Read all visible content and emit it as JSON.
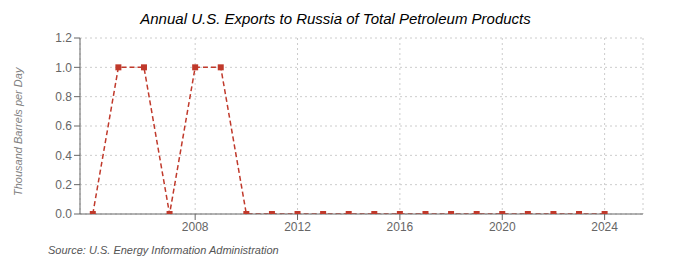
{
  "chart_data": {
    "type": "line",
    "title": "Annual U.S. Exports to Russia of Total Petroleum Products",
    "y_label": "Thousand Barrels per Day",
    "source": "Source: U.S. Energy Information Administration",
    "x": [
      2004,
      2005,
      2006,
      2007,
      2008,
      2009,
      2010,
      2011,
      2012,
      2013,
      2014,
      2015,
      2016,
      2017,
      2018,
      2019,
      2020,
      2021,
      2022,
      2023,
      2024
    ],
    "values": [
      0.0,
      1.0,
      1.0,
      0.0,
      1.0,
      1.0,
      0.0,
      0.0,
      0.0,
      0.0,
      0.0,
      0.0,
      0.0,
      0.0,
      0.0,
      0.0,
      0.0,
      0.0,
      0.0,
      0.0,
      0.0
    ],
    "xlim": [
      2003.5,
      2025.5
    ],
    "xticks": [
      2008,
      2012,
      2016,
      2020,
      2024
    ],
    "ylim": [
      0,
      1.2
    ],
    "yticks": [
      {
        "value": 0.0,
        "label": "0.0"
      },
      0.2,
      0.4,
      0.6,
      0.8,
      {
        "value": 1.0,
        "label": "1.0"
      },
      1.2
    ],
    "color": "#c0392b",
    "line_style": "dashed",
    "marker": "square",
    "grid": true
  }
}
